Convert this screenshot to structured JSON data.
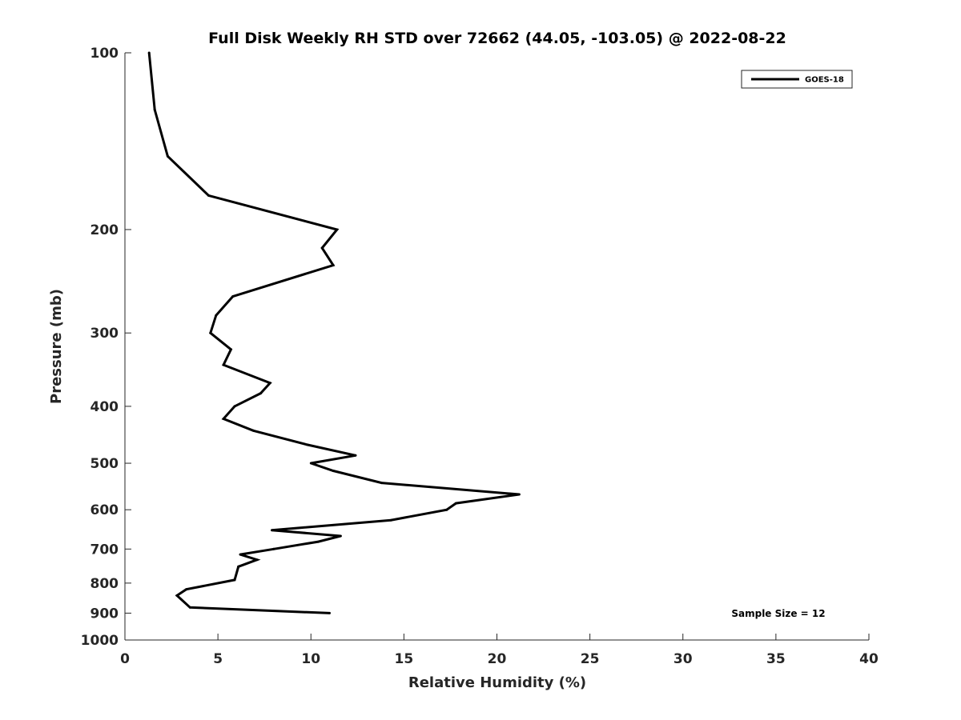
{
  "chart_data": {
    "type": "line",
    "title": "Full Disk Weekly RH STD over 72662 (44.05, -103.05) @ 2022-08-22",
    "xlabel": "Relative Humidity (%)",
    "ylabel": "Pressure (mb)",
    "xlim": [
      0,
      40
    ],
    "ylim": [
      100,
      1000
    ],
    "yscale": "log",
    "y_reversed": true,
    "grid": false,
    "legend_position": "top-right",
    "x_ticks": [
      "0",
      "5",
      "10",
      "15",
      "20",
      "25",
      "30",
      "35",
      "40"
    ],
    "y_ticks": [
      "100",
      "200",
      "300",
      "400",
      "500",
      "600",
      "700",
      "800",
      "900",
      "1000"
    ],
    "series": [
      {
        "name": "GOES-18",
        "color": "#000000",
        "points": [
          {
            "x": 1.3,
            "y": 100
          },
          {
            "x": 1.6,
            "y": 125
          },
          {
            "x": 2.3,
            "y": 150
          },
          {
            "x": 4.5,
            "y": 175
          },
          {
            "x": 11.4,
            "y": 200
          },
          {
            "x": 10.6,
            "y": 215
          },
          {
            "x": 11.2,
            "y": 230
          },
          {
            "x": 5.8,
            "y": 260
          },
          {
            "x": 4.9,
            "y": 280
          },
          {
            "x": 4.6,
            "y": 300
          },
          {
            "x": 5.7,
            "y": 320
          },
          {
            "x": 5.3,
            "y": 340
          },
          {
            "x": 7.8,
            "y": 365
          },
          {
            "x": 7.3,
            "y": 380
          },
          {
            "x": 5.9,
            "y": 400
          },
          {
            "x": 5.3,
            "y": 420
          },
          {
            "x": 6.9,
            "y": 440
          },
          {
            "x": 9.8,
            "y": 465
          },
          {
            "x": 12.4,
            "y": 485
          },
          {
            "x": 10.0,
            "y": 500
          },
          {
            "x": 11.2,
            "y": 515
          },
          {
            "x": 13.8,
            "y": 540
          },
          {
            "x": 21.2,
            "y": 565
          },
          {
            "x": 17.8,
            "y": 585
          },
          {
            "x": 17.3,
            "y": 600
          },
          {
            "x": 14.3,
            "y": 625
          },
          {
            "x": 7.9,
            "y": 650
          },
          {
            "x": 11.6,
            "y": 665
          },
          {
            "x": 10.4,
            "y": 680
          },
          {
            "x": 8.0,
            "y": 700
          },
          {
            "x": 6.2,
            "y": 715
          },
          {
            "x": 7.1,
            "y": 730
          },
          {
            "x": 6.1,
            "y": 750
          },
          {
            "x": 5.9,
            "y": 790
          },
          {
            "x": 3.3,
            "y": 820
          },
          {
            "x": 2.8,
            "y": 840
          },
          {
            "x": 3.5,
            "y": 880
          },
          {
            "x": 11.0,
            "y": 900
          }
        ]
      }
    ],
    "annotations": [
      {
        "text": "Sample Size = 12"
      }
    ]
  }
}
